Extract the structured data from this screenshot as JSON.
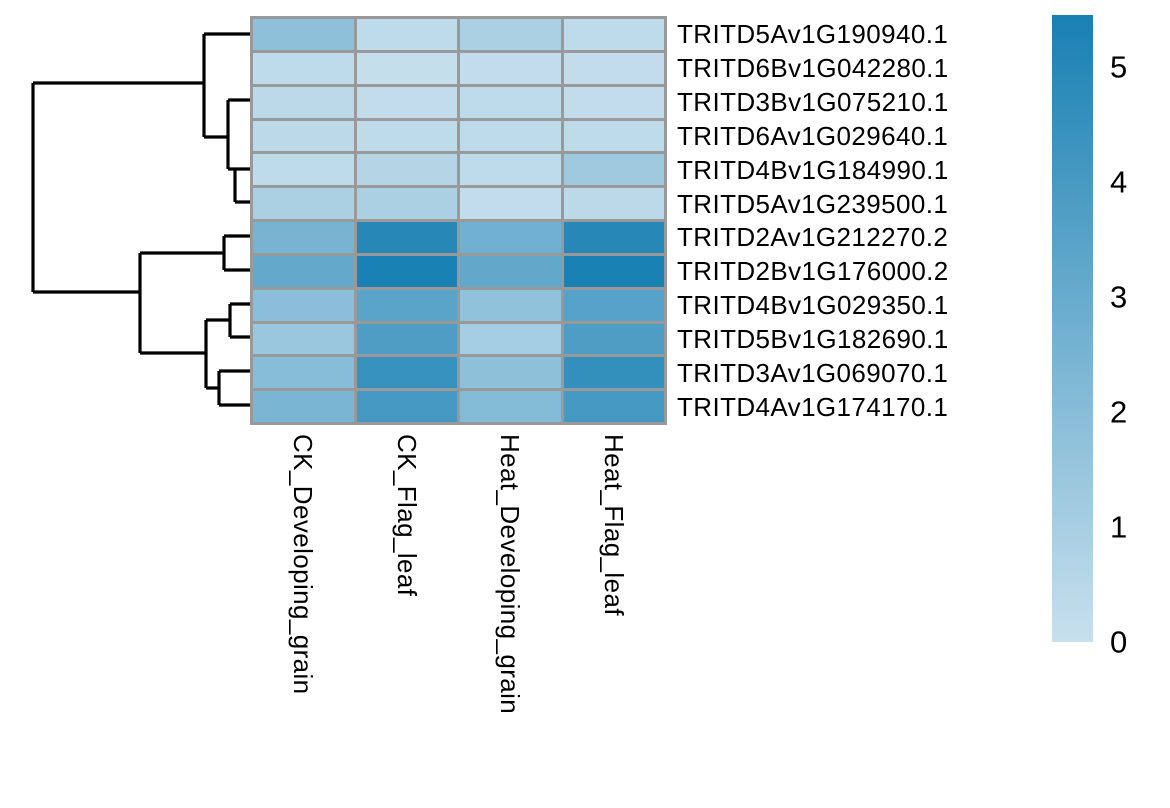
{
  "figure": {
    "background_color": "#ffffff",
    "description": "Clustered heatmap of wheat gene expression with row dendrogram and color scale legend"
  },
  "chart_data": {
    "type": "heatmap",
    "columns": [
      "CK_Developing_grain",
      "CK_Flag_leaf",
      "Heat_Developing_grain",
      "Heat_Flag_leaf"
    ],
    "rows": [
      "TRITD5Av1G190940.1",
      "TRITD6Bv1G042280.1",
      "TRITD3Bv1G075210.1",
      "TRITD6Av1G029640.1",
      "TRITD4Bv1G184990.1",
      "TRITD5Av1G239500.1",
      "TRITD2Av1G212270.2",
      "TRITD2Bv1G176000.2",
      "TRITD4Bv1G029350.1",
      "TRITD5Bv1G182690.1",
      "TRITD3Av1G069070.1",
      "TRITD4Av1G174170.1"
    ],
    "values": [
      [
        1.8,
        0.3,
        0.9,
        0.3
      ],
      [
        0.3,
        0.1,
        0.2,
        0.2
      ],
      [
        0.4,
        0.2,
        0.3,
        0.2
      ],
      [
        0.4,
        0.3,
        0.3,
        0.3
      ],
      [
        0.3,
        0.6,
        0.3,
        1.3
      ],
      [
        0.9,
        0.9,
        0.2,
        0.4
      ],
      [
        2.5,
        5.0,
        2.7,
        5.0
      ],
      [
        3.1,
        5.4,
        3.2,
        5.4
      ],
      [
        1.9,
        3.4,
        1.7,
        3.5
      ],
      [
        1.4,
        3.8,
        1.1,
        3.8
      ],
      [
        2.0,
        4.5,
        1.8,
        4.6
      ],
      [
        2.4,
        4.1,
        2.1,
        4.1
      ]
    ],
    "value_scale": {
      "min": 0,
      "max": 5.45,
      "min_color": "#c8e0ed",
      "max_color": "#1880b3"
    },
    "grid_color": "#999999",
    "legend": {
      "position": "right",
      "ticks": [
        5,
        4,
        3,
        2,
        1,
        0
      ]
    },
    "row_dendrogram": {
      "line_color": "#000000",
      "clusters": "two main clusters: rows 1-6 and rows 7-12; lower cluster = ((7,8),((9,10),(11,12)))",
      "segments": [
        [
          204,
          34,
          252,
          34
        ],
        [
          204,
          34,
          204,
          137
        ],
        [
          204,
          137,
          228,
          137
        ],
        [
          228,
          100,
          228,
          169
        ],
        [
          228,
          100,
          252,
          100
        ],
        [
          228,
          169,
          252,
          169
        ],
        [
          235,
          169,
          235,
          202
        ],
        [
          235,
          202,
          252,
          202
        ],
        [
          33,
          83,
          204,
          83
        ],
        [
          33,
          83,
          33,
          292
        ],
        [
          33,
          292,
          140,
          292
        ],
        [
          140,
          253,
          140,
          353
        ],
        [
          140,
          253,
          224,
          253
        ],
        [
          224,
          236,
          224,
          270
        ],
        [
          224,
          236,
          252,
          236
        ],
        [
          224,
          270,
          252,
          270
        ],
        [
          140,
          353,
          206,
          353
        ],
        [
          206,
          320,
          206,
          388
        ],
        [
          206,
          320,
          230,
          320
        ],
        [
          230,
          304,
          230,
          337
        ],
        [
          230,
          304,
          252,
          304
        ],
        [
          230,
          337,
          252,
          337
        ],
        [
          206,
          388,
          219,
          388
        ],
        [
          219,
          371,
          219,
          405
        ],
        [
          219,
          371,
          252,
          371
        ],
        [
          219,
          405,
          252,
          405
        ]
      ]
    }
  }
}
